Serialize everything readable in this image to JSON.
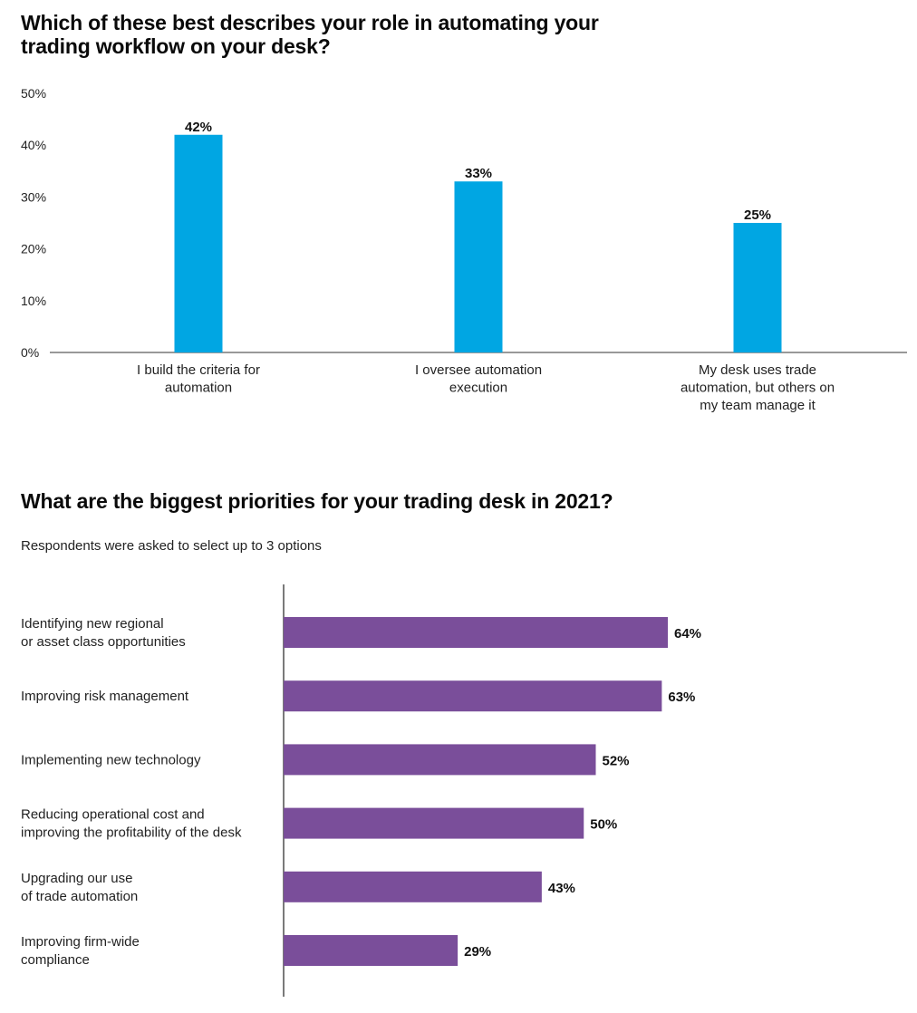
{
  "chart_data": [
    {
      "type": "bar",
      "title": "Which of these best describes your role in automating your trading workflow on your desk?",
      "categories": [
        "I build the criteria for automation",
        "I oversee automation execution",
        "My desk uses trade automation, but others on my team manage it"
      ],
      "category_lines": [
        [
          "I build the criteria for",
          "automation"
        ],
        [
          "I oversee automation",
          "execution"
        ],
        [
          "My desk uses trade",
          "automation, but others on",
          "my team manage it"
        ]
      ],
      "values": [
        42,
        33,
        25
      ],
      "value_labels": [
        "42%",
        "33%",
        "25%"
      ],
      "ylim": [
        0,
        50
      ],
      "yticks": [
        "0%",
        "10%",
        "20%",
        "30%",
        "40%",
        "50%"
      ],
      "grid": false,
      "bar_color": "#00a6e3"
    },
    {
      "type": "bar",
      "orientation": "horizontal",
      "title": "What are the biggest priorities for your trading desk in 2021?",
      "subtitle": "Respondents were asked to select up to 3 options",
      "categories": [
        "Identifying new regional or asset class opportunities",
        "Improving risk management",
        "Implementing new technology",
        "Reducing operational cost and improving the profitability of the desk",
        "Upgrading our use of trade automation",
        "Improving firm-wide compliance"
      ],
      "category_lines": [
        [
          "Identifying new regional",
          "or asset class opportunities"
        ],
        [
          "Improving risk management"
        ],
        [
          "Implementing new technology"
        ],
        [
          "Reducing operational cost and",
          "improving the profitability of the desk"
        ],
        [
          "Upgrading our use",
          "of trade automation"
        ],
        [
          "Improving firm-wide",
          "compliance"
        ]
      ],
      "values": [
        64,
        63,
        52,
        50,
        43,
        29
      ],
      "value_labels": [
        "64%",
        "63%",
        "52%",
        "50%",
        "43%",
        "29%"
      ],
      "grid": false,
      "bar_color": "#7a4e9a"
    }
  ]
}
